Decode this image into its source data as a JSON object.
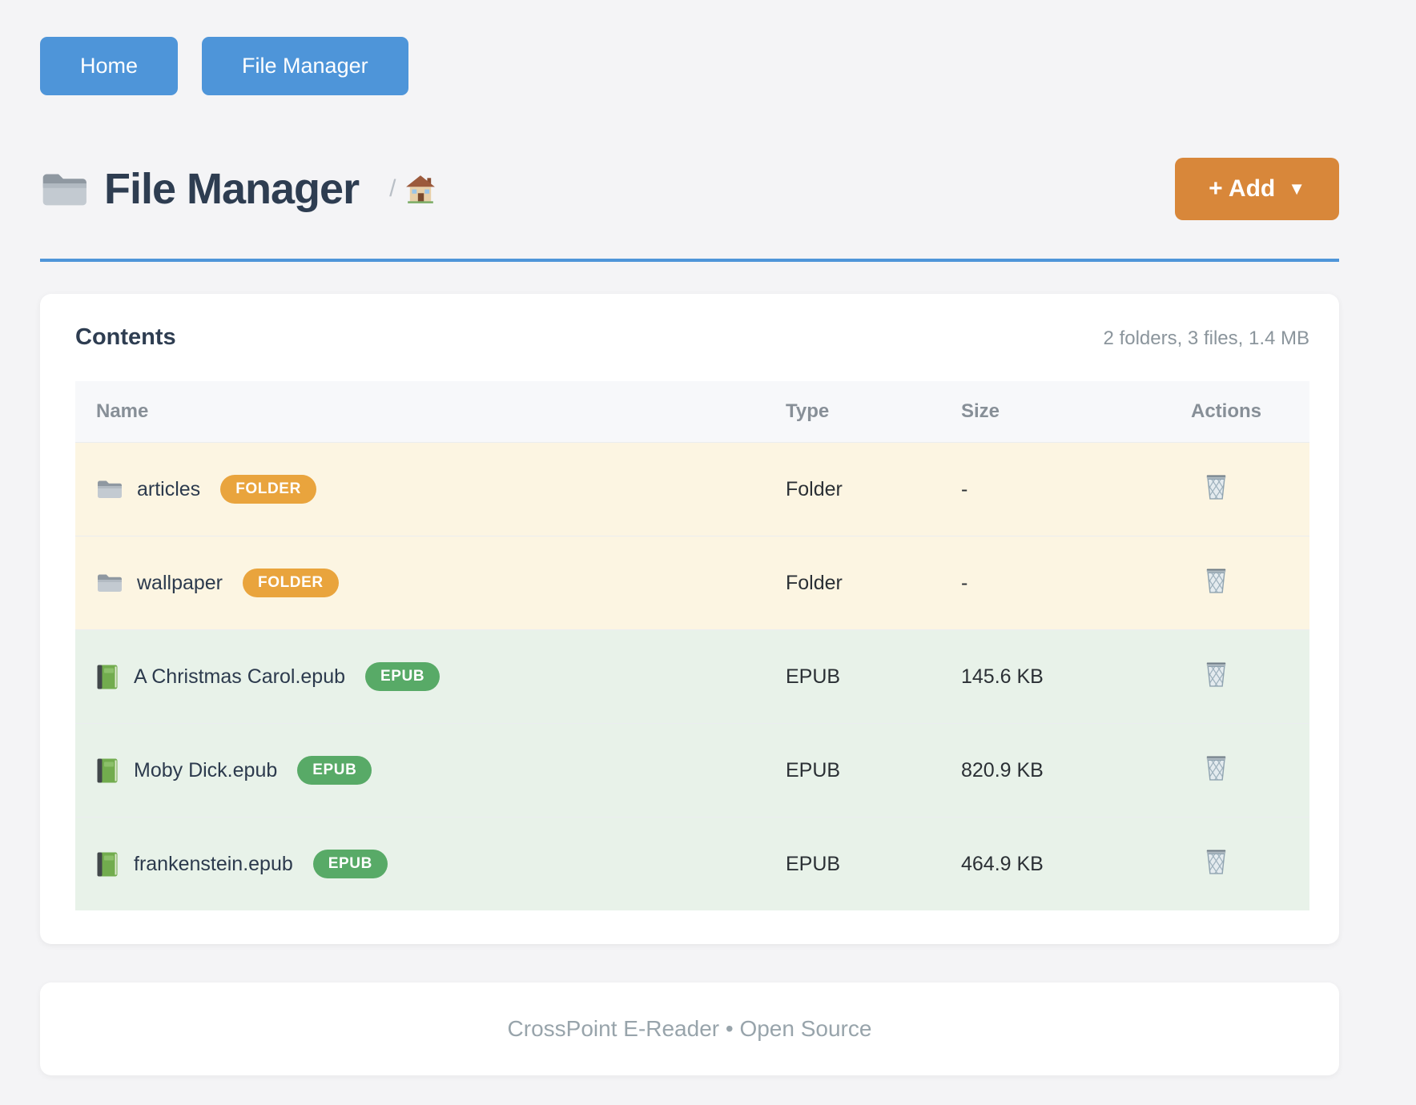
{
  "nav": {
    "buttons": [
      {
        "label": "Home"
      },
      {
        "label": "File Manager"
      }
    ]
  },
  "header": {
    "title": "File Manager",
    "breadcrumb_separator": "/",
    "add_label": "+ Add",
    "add_caret": "▼"
  },
  "contents": {
    "heading": "Contents",
    "summary": "2 folders, 3 files, 1.4 MB",
    "table": {
      "columns": [
        "Name",
        "Type",
        "Size",
        "Actions"
      ],
      "rows": [
        {
          "name": "articles",
          "badge": "FOLDER",
          "kind": "folder",
          "type": "Folder",
          "size": "-"
        },
        {
          "name": "wallpaper",
          "badge": "FOLDER",
          "kind": "folder",
          "type": "Folder",
          "size": "-"
        },
        {
          "name": "A Christmas Carol.epub",
          "badge": "EPUB",
          "kind": "epub",
          "type": "EPUB",
          "size": "145.6 KB"
        },
        {
          "name": "Moby Dick.epub",
          "badge": "EPUB",
          "kind": "epub",
          "type": "EPUB",
          "size": "820.9 KB"
        },
        {
          "name": "frankenstein.epub",
          "badge": "EPUB",
          "kind": "epub",
          "type": "EPUB",
          "size": "464.9 KB"
        }
      ]
    }
  },
  "footer": {
    "text": "CrossPoint E-Reader • Open Source"
  },
  "colors": {
    "page_bg": "#f4f4f6",
    "accent_blue": "#4e95d9",
    "accent_orange": "#d8873a",
    "badge_folder": "#e9a43d",
    "badge_epub": "#58aa67",
    "row_folder_bg": "#fcf5e2",
    "row_epub_bg": "#e8f2e9"
  }
}
